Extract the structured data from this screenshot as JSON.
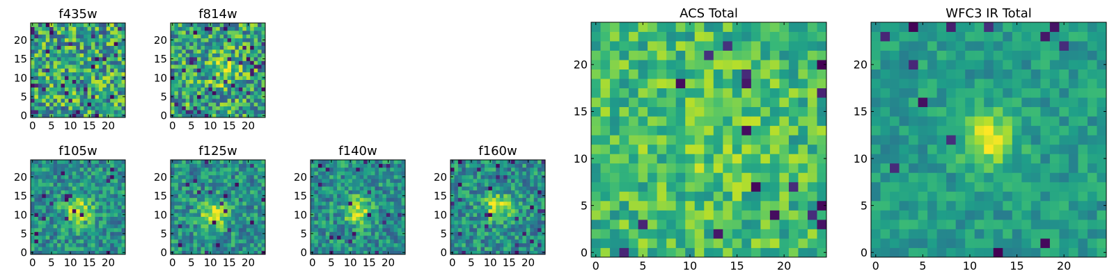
{
  "figure": {
    "background": "#ffffff"
  },
  "colormap": {
    "name": "viridis",
    "stops": [
      "#440154",
      "#482878",
      "#3e4989",
      "#31688e",
      "#26828e",
      "#1f9e89",
      "#35b779",
      "#6ece58",
      "#b5de2b",
      "#fde725"
    ]
  },
  "chart_data": [
    {
      "type": "heatmap",
      "title": "f435w",
      "xlim": [
        -0.5,
        24.5
      ],
      "ylim": [
        -0.5,
        24.5
      ],
      "xticks": [
        0,
        5,
        10,
        15,
        20
      ],
      "yticks": [
        0,
        5,
        10,
        15,
        20
      ],
      "grid": false,
      "value_range": [
        0,
        1
      ],
      "description_of_values": "noise-dominated, no central source",
      "seed": 11,
      "source": null,
      "noise": 0.34,
      "background": 0.58,
      "dark_fraction": 0.05
    },
    {
      "type": "heatmap",
      "title": "f814w",
      "xlim": [
        -0.5,
        24.5
      ],
      "ylim": [
        -0.5,
        24.5
      ],
      "xticks": [
        0,
        5,
        10,
        15,
        20
      ],
      "yticks": [
        0,
        5,
        10,
        15,
        20
      ],
      "grid": false,
      "value_range": [
        0,
        1
      ],
      "seed": 23,
      "source": {
        "x": 13,
        "y": 12,
        "sigma": 3.0,
        "amp": 0.22
      },
      "noise": 0.32,
      "background": 0.58,
      "dark_fraction": 0.05
    },
    {
      "type": "heatmap",
      "title": "f105w",
      "xlim": [
        -0.5,
        24.5
      ],
      "ylim": [
        -0.5,
        24.5
      ],
      "xticks": [
        0,
        5,
        10,
        15,
        20
      ],
      "yticks": [
        0,
        5,
        10,
        15,
        20
      ],
      "grid": false,
      "value_range": [
        0,
        1
      ],
      "seed": 37,
      "source": {
        "x": 12,
        "y": 11,
        "sigma": 2.6,
        "amp": 0.42
      },
      "noise": 0.22,
      "background": 0.5,
      "dark_fraction": 0.03
    },
    {
      "type": "heatmap",
      "title": "f125w",
      "xlim": [
        -0.5,
        24.5
      ],
      "ylim": [
        -0.5,
        24.5
      ],
      "xticks": [
        0,
        5,
        10,
        15,
        20
      ],
      "yticks": [
        0,
        5,
        10,
        15,
        20
      ],
      "grid": false,
      "value_range": [
        0,
        1
      ],
      "seed": 41,
      "source": {
        "x": 11,
        "y": 10,
        "sigma": 2.6,
        "amp": 0.42
      },
      "noise": 0.22,
      "background": 0.5,
      "dark_fraction": 0.03
    },
    {
      "type": "heatmap",
      "title": "f140w",
      "xlim": [
        -0.5,
        24.5
      ],
      "ylim": [
        -0.5,
        24.5
      ],
      "xticks": [
        0,
        5,
        10,
        15,
        20
      ],
      "yticks": [
        0,
        5,
        10,
        15,
        20
      ],
      "grid": false,
      "value_range": [
        0,
        1
      ],
      "seed": 53,
      "source": {
        "x": 12,
        "y": 11,
        "sigma": 2.4,
        "amp": 0.45
      },
      "noise": 0.22,
      "background": 0.5,
      "dark_fraction": 0.04
    },
    {
      "type": "heatmap",
      "title": "f160w",
      "xlim": [
        -0.5,
        24.5
      ],
      "ylim": [
        -0.5,
        24.5
      ],
      "xticks": [
        0,
        5,
        10,
        15,
        20
      ],
      "yticks": [
        0,
        5,
        10,
        15,
        20
      ],
      "grid": false,
      "value_range": [
        0,
        1
      ],
      "seed": 67,
      "source": {
        "x": 12,
        "y": 12,
        "sigma": 2.6,
        "amp": 0.42
      },
      "noise": 0.22,
      "background": 0.5,
      "dark_fraction": 0.04
    },
    {
      "type": "heatmap",
      "title": "ACS Total",
      "xlim": [
        -0.5,
        24.5
      ],
      "ylim": [
        -0.5,
        24.5
      ],
      "xticks": [
        0,
        5,
        10,
        15,
        20
      ],
      "yticks": [
        0,
        5,
        10,
        15,
        20
      ],
      "grid": false,
      "value_range": [
        0,
        1
      ],
      "seed": 79,
      "source": {
        "x": 12,
        "y": 12,
        "sigma": 4.0,
        "amp": 0.08
      },
      "noise": 0.2,
      "background": 0.68,
      "dark_fraction": 0.035
    },
    {
      "type": "heatmap",
      "title": "WFC3 IR Total",
      "xlim": [
        -0.5,
        24.5
      ],
      "ylim": [
        -0.5,
        24.5
      ],
      "xticks": [
        0,
        5,
        10,
        15,
        20
      ],
      "yticks": [
        0,
        5,
        10,
        15,
        20
      ],
      "grid": false,
      "value_range": [
        0,
        1
      ],
      "seed": 97,
      "source": {
        "x": 12,
        "y": 12,
        "sigma": 2.0,
        "amp": 0.4
      },
      "noise": 0.13,
      "background": 0.55,
      "dark_fraction": 0.02
    }
  ]
}
